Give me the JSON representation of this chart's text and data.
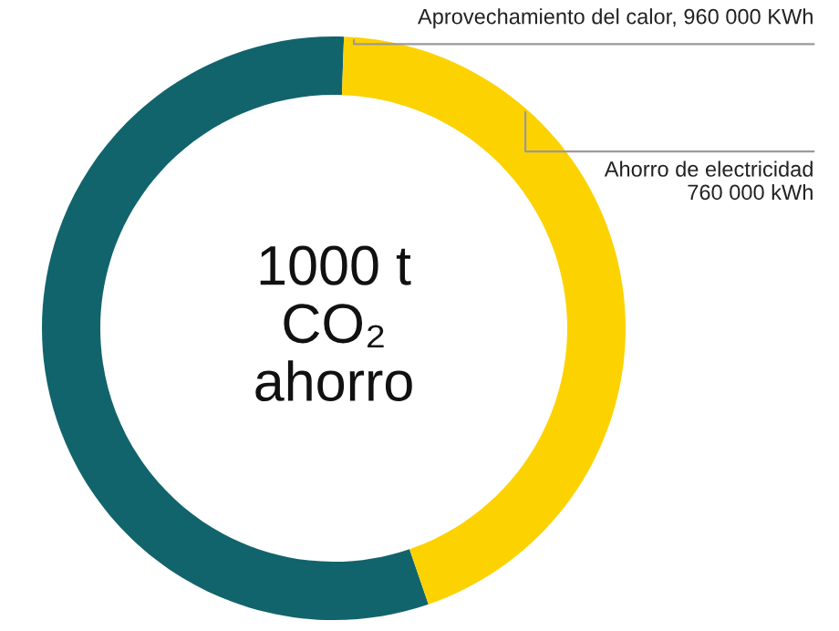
{
  "chart_data": {
    "type": "donut",
    "categories": [
      "Aprovechamiento del calor, 960 000 KWh",
      "Ahorro de electricidad\n760 000 kWh"
    ],
    "values": [
      960000,
      760000
    ],
    "colors": [
      "#12646c",
      "#fdd201"
    ],
    "annotations": [
      "1000 t\nCO₂\nahorro"
    ]
  }
}
